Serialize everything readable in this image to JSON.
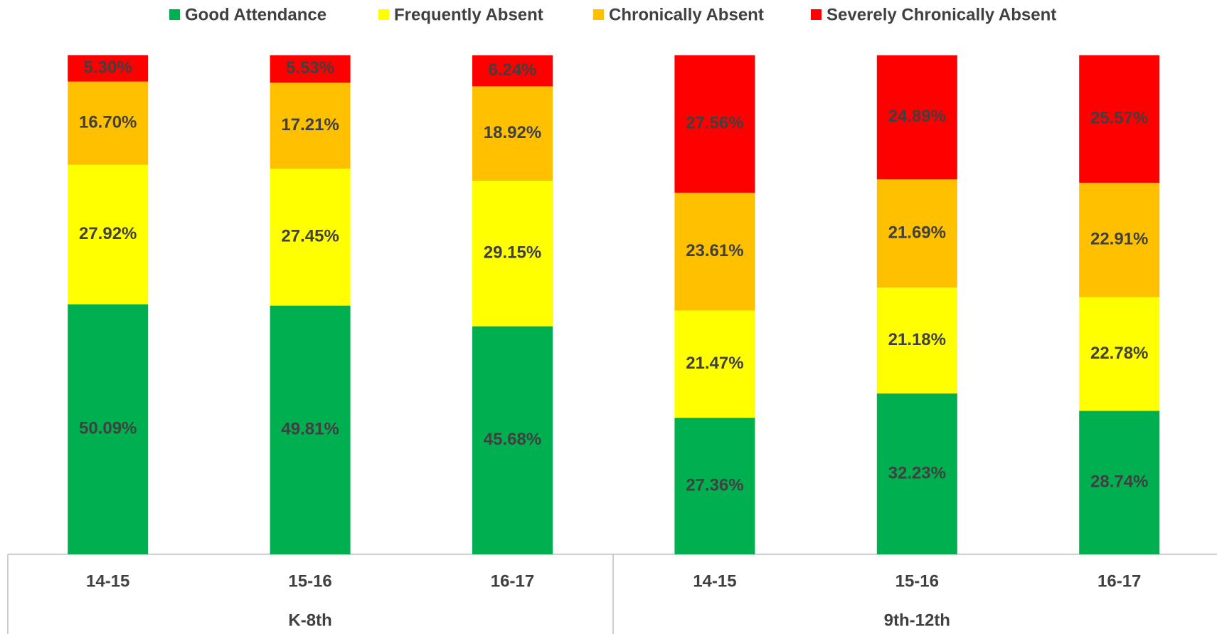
{
  "chart_data": {
    "type": "stacked_bar",
    "groups": [
      {
        "name": "K-8th",
        "categories": [
          "14-15",
          "15-16",
          "16-17"
        ]
      },
      {
        "name": "9th-12th",
        "categories": [
          "14-15",
          "15-16",
          "16-17"
        ]
      }
    ],
    "series": [
      {
        "name": "Good Attendance",
        "color": "#00b050",
        "values": [
          50.09,
          49.81,
          45.68,
          27.36,
          32.23,
          28.74
        ],
        "value_labels": [
          "50.09%",
          "49.81%",
          "45.68%",
          "27.36%",
          "32.23%",
          "28.74%"
        ]
      },
      {
        "name": "Frequently Absent",
        "color": "#ffff00",
        "values": [
          27.92,
          27.45,
          29.15,
          21.47,
          21.18,
          22.78
        ],
        "value_labels": [
          "27.92%",
          "27.45%",
          "29.15%",
          "21.47%",
          "21.18%",
          "22.78%"
        ]
      },
      {
        "name": "Chronically Absent",
        "color": "#ffc000",
        "values": [
          16.7,
          17.21,
          18.92,
          23.61,
          21.69,
          22.91
        ],
        "value_labels": [
          "16.70%",
          "17.21%",
          "18.92%",
          "23.61%",
          "21.69%",
          "22.91%"
        ]
      },
      {
        "name": "Severely Chronically Absent",
        "color": "#ff0000",
        "values": [
          5.3,
          5.53,
          6.24,
          27.56,
          24.89,
          25.57
        ],
        "value_labels": [
          "5.30%",
          "5.53%",
          "6.24%",
          "27.56%",
          "24.89%",
          "25.57%"
        ]
      }
    ],
    "ylim": [
      0,
      100
    ]
  }
}
